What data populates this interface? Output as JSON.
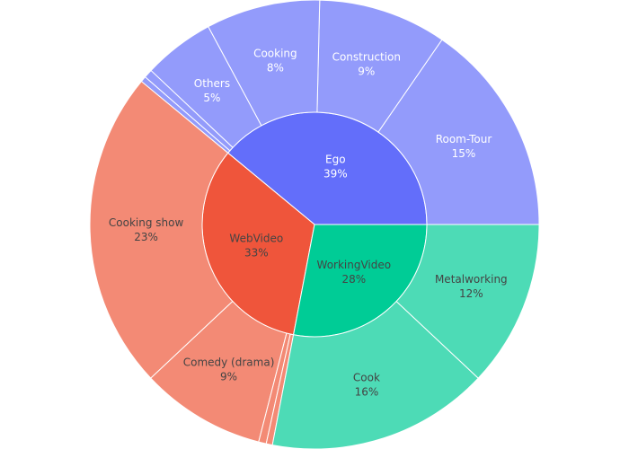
{
  "chart_data": {
    "type": "sunburst",
    "title": "",
    "nodes": [
      {
        "label": "Ego",
        "percent_label": "39%",
        "value": 39,
        "color": "#636efa",
        "text_color": "#ffffff",
        "child_color": "#939bfb",
        "child_text_color": "#ffffff",
        "children": [
          {
            "label": "Room-Tour",
            "percent_label": "15%",
            "value": 15
          },
          {
            "label": "Construction",
            "percent_label": "9%",
            "value": 9
          },
          {
            "label": "Cooking",
            "percent_label": "8%",
            "value": 8
          },
          {
            "label": "Others",
            "percent_label": "5%",
            "value": 5
          },
          {
            "label": "",
            "percent_label": "",
            "value": 0.6
          },
          {
            "label": "",
            "percent_label": "",
            "value": 0.4
          }
        ]
      },
      {
        "label": "WebVideo",
        "percent_label": "33%",
        "value": 33,
        "color": "#ef553b",
        "text_color": "#444444",
        "child_color": "#f38a75",
        "child_text_color": "#444444",
        "children": [
          {
            "label": "Cooking show",
            "percent_label": "23%",
            "value": 23
          },
          {
            "label": "Comedy (drama)",
            "percent_label": "9%",
            "value": 9
          },
          {
            "label": "",
            "percent_label": "",
            "value": 0.55
          },
          {
            "label": "",
            "percent_label": "",
            "value": 0.45
          }
        ]
      },
      {
        "label": "WorkingVideo",
        "percent_label": "28%",
        "value": 28,
        "color": "#00cc96",
        "text_color": "#444444",
        "child_color": "#4ddbb6",
        "child_text_color": "#444444",
        "children": [
          {
            "label": "Cook",
            "percent_label": "16%",
            "value": 16
          },
          {
            "label": "Metalworking",
            "percent_label": "12%",
            "value": 12
          }
        ]
      }
    ]
  }
}
